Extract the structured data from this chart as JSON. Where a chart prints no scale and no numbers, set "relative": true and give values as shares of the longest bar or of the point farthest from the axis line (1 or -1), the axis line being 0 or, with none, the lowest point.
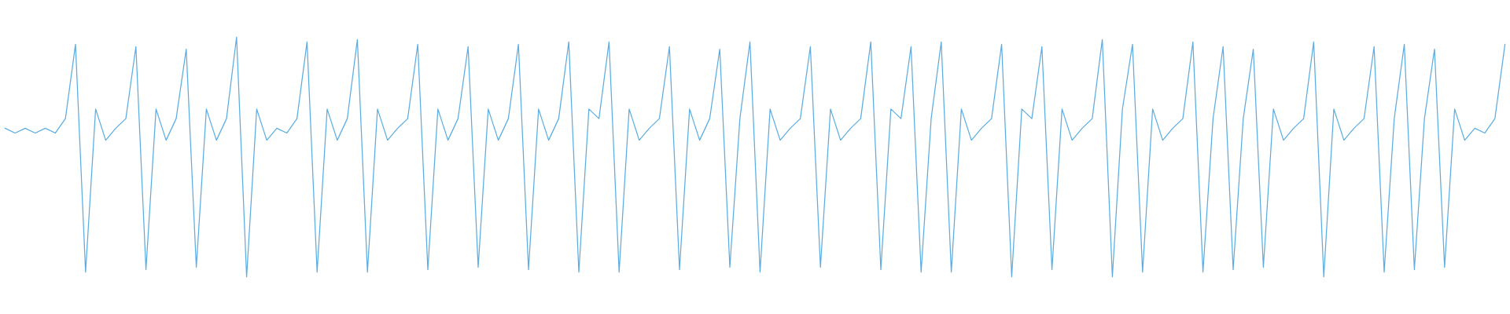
{
  "chart_data": {
    "type": "line",
    "relative": true,
    "categories": [
      null,
      null,
      null,
      null,
      null,
      null,
      null,
      null,
      null,
      null,
      null,
      null,
      null,
      null,
      null,
      null,
      null,
      null,
      null,
      null,
      null,
      null,
      null,
      null,
      null,
      null,
      null,
      null,
      null,
      null,
      null,
      null,
      null,
      null,
      null,
      null,
      null,
      null,
      null,
      null,
      null,
      null,
      null,
      null,
      null,
      null,
      null,
      null,
      null,
      null,
      null,
      null,
      null,
      null,
      null,
      null,
      null,
      null,
      null,
      null,
      null,
      null,
      null,
      null,
      null,
      null,
      null,
      null,
      null,
      null,
      null,
      null,
      null,
      null,
      null,
      null,
      null,
      null,
      null,
      null,
      null,
      null,
      null,
      null,
      null,
      null,
      null,
      null,
      null,
      null,
      null,
      null,
      null,
      null,
      null,
      null,
      null,
      null,
      null,
      null,
      null,
      null,
      null,
      null,
      null,
      null,
      null,
      null,
      null,
      null,
      null,
      null,
      null,
      null,
      null,
      null,
      null,
      null,
      null,
      null,
      null,
      null,
      null,
      null,
      null,
      null,
      null,
      null,
      null,
      null,
      null,
      null,
      null,
      null,
      null,
      null,
      null,
      null,
      null,
      null,
      null,
      null,
      null,
      null,
      null,
      null,
      null,
      null,
      null,
      null
    ],
    "series": [
      {
        "color": "#5dade2",
        "values": [
          0.62,
          0.6,
          0.62,
          0.6,
          0.62,
          0.6,
          0.66,
          0.97,
          0.02,
          0.7,
          0.57,
          0.62,
          0.66,
          0.96,
          0.03,
          0.7,
          0.57,
          0.66,
          0.95,
          0.04,
          0.7,
          0.57,
          0.66,
          1.0,
          0.0,
          0.7,
          0.57,
          0.62,
          0.6,
          0.66,
          0.98,
          0.02,
          0.7,
          0.57,
          0.66,
          0.99,
          0.02,
          0.7,
          0.57,
          0.62,
          0.66,
          0.97,
          0.03,
          0.7,
          0.57,
          0.66,
          0.96,
          0.04,
          0.7,
          0.57,
          0.66,
          0.97,
          0.03,
          0.7,
          0.57,
          0.66,
          0.98,
          0.02,
          0.7,
          0.66,
          0.98,
          0.02,
          0.7,
          0.57,
          0.62,
          0.66,
          0.96,
          0.03,
          0.7,
          0.57,
          0.66,
          0.95,
          0.04,
          0.66,
          0.98,
          0.02,
          0.7,
          0.57,
          0.62,
          0.66,
          0.96,
          0.04,
          0.7,
          0.57,
          0.62,
          0.66,
          0.98,
          0.03,
          0.7,
          0.66,
          0.96,
          0.02,
          0.66,
          0.98,
          0.02,
          0.7,
          0.57,
          0.62,
          0.66,
          0.97,
          0.0,
          0.7,
          0.66,
          0.96,
          0.03,
          0.7,
          0.57,
          0.62,
          0.66,
          0.99,
          0.0,
          0.7,
          0.97,
          0.02,
          0.7,
          0.57,
          0.62,
          0.66,
          0.98,
          0.02,
          0.66,
          0.96,
          0.03,
          0.66,
          0.95,
          0.04,
          0.7,
          0.57,
          0.62,
          0.66,
          0.98,
          0.0,
          0.7,
          0.57,
          0.62,
          0.66,
          0.96,
          0.02,
          0.66,
          0.97,
          0.03,
          0.66,
          0.95,
          0.04,
          0.7,
          0.57,
          0.62,
          0.6,
          0.66,
          0.97
        ]
      }
    ]
  }
}
